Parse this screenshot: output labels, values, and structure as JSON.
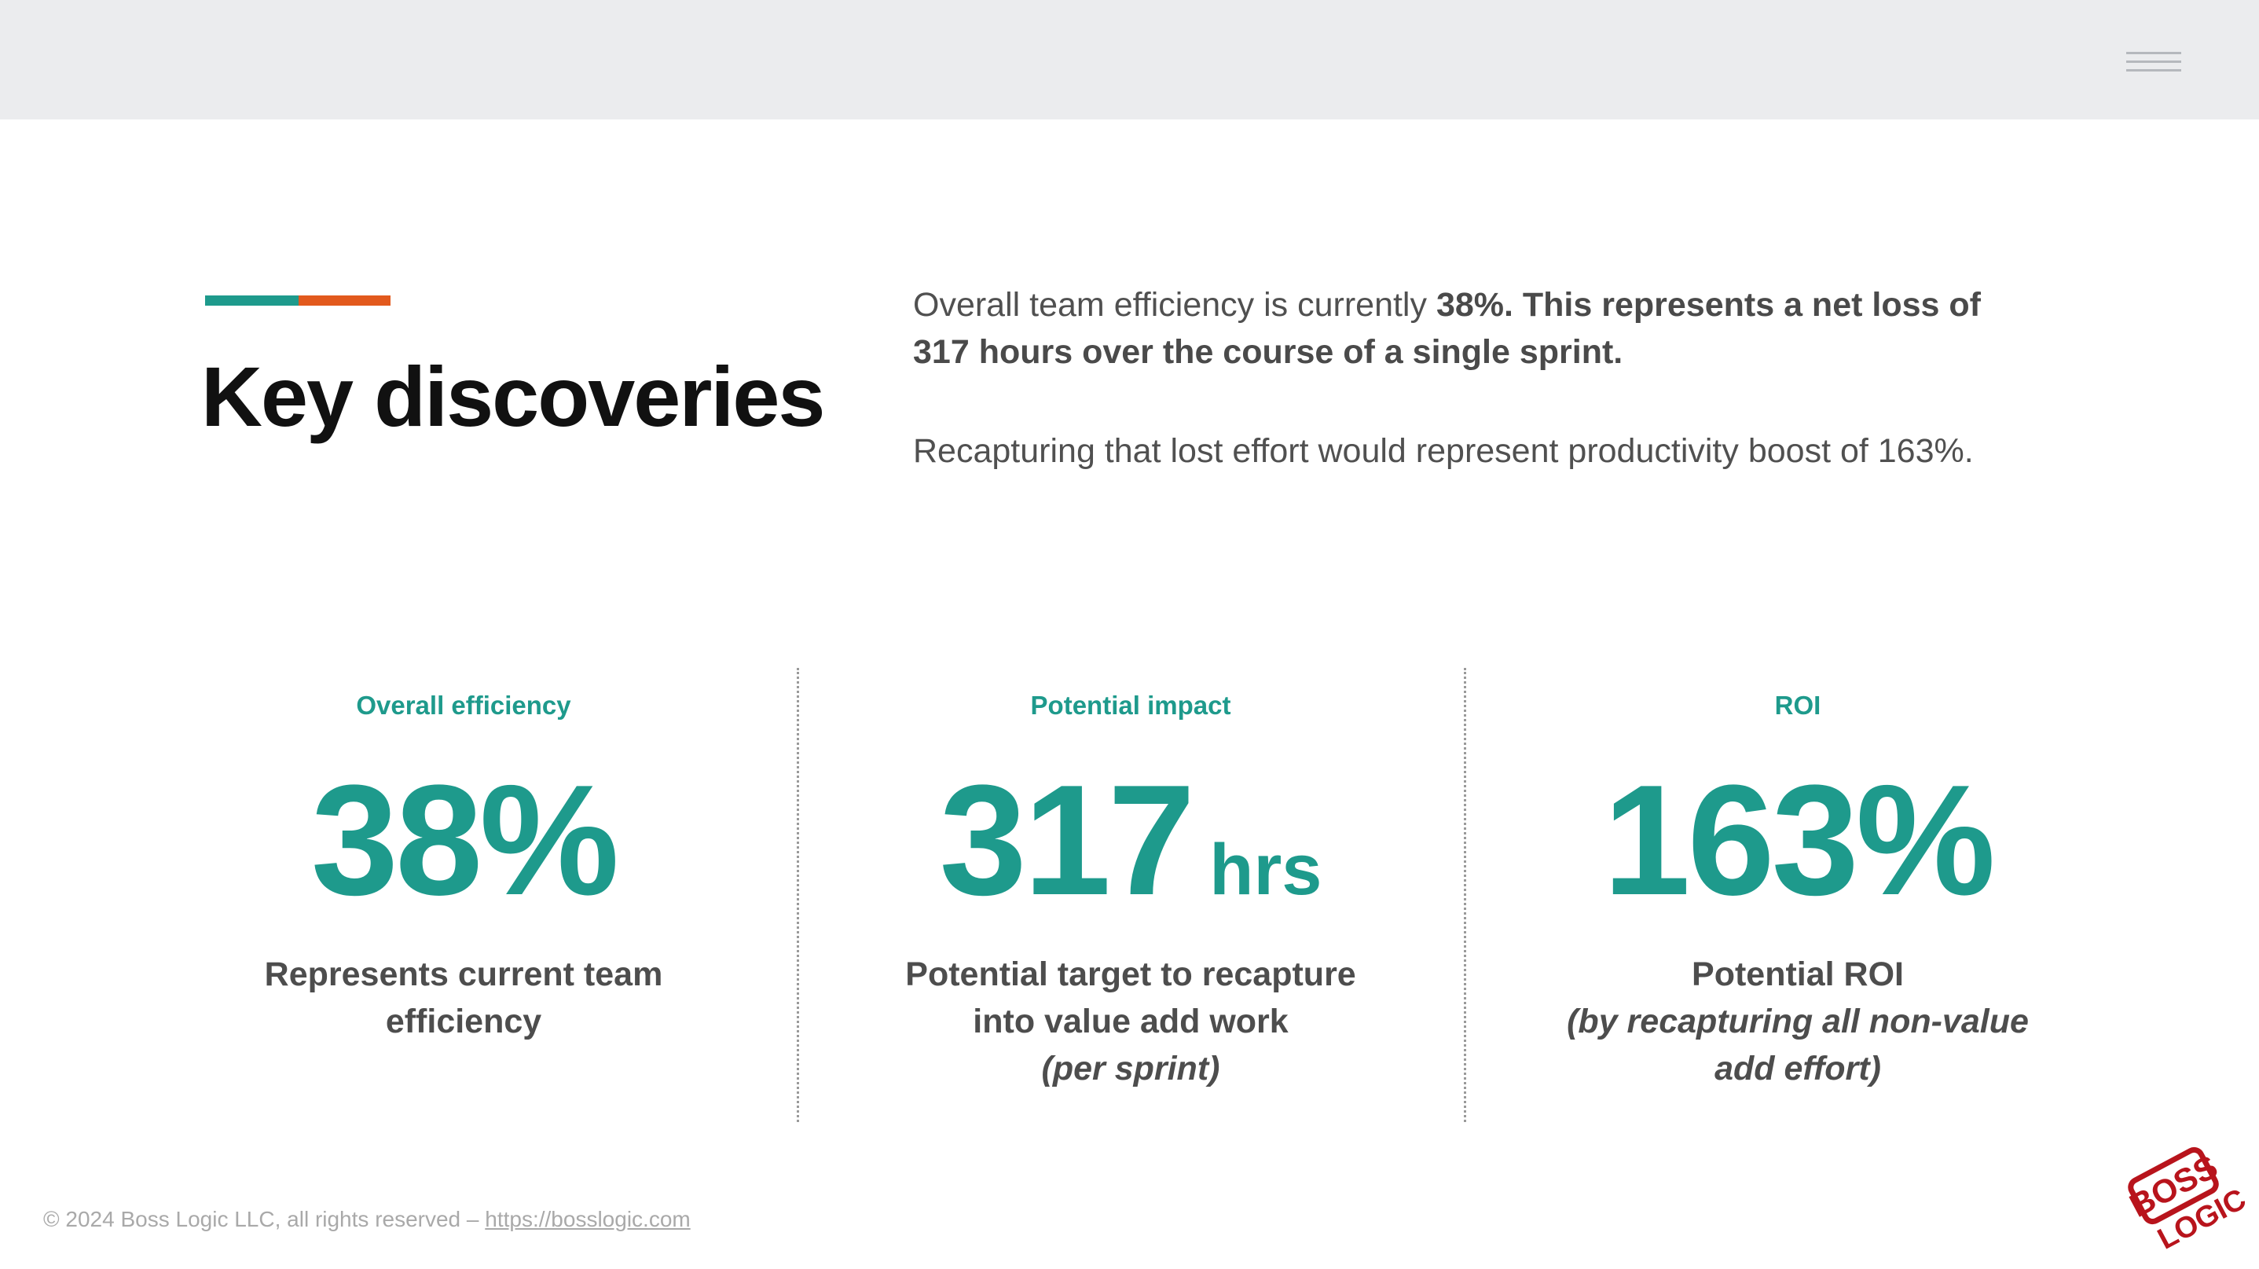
{
  "header": {
    "menu_icon": "hamburger-menu-icon"
  },
  "colors": {
    "accent_teal": "#1e9a8c",
    "accent_orange": "#e2591d",
    "topbar": "#ebecee"
  },
  "title": "Key discoveries",
  "intro": {
    "p1_normal": "Overall team efficiency is currently ",
    "p1_bold": "38%. This represents a net loss of 317 hours over the course of a single sprint.",
    "p2": "Recapturing that lost effort would represent productivity boost of 163%."
  },
  "stats": [
    {
      "label": "Overall efficiency",
      "value": "38%",
      "unit": "",
      "desc": "Represents current team efficiency",
      "note": ""
    },
    {
      "label": "Potential impact",
      "value": "317",
      "unit": "hrs",
      "desc": "Potential target to recapture into value add work",
      "note": "(per sprint)"
    },
    {
      "label": "ROI",
      "value": "163%",
      "unit": "",
      "desc": "Potential ROI",
      "note": "(by recapturing all non-value add effort)"
    }
  ],
  "footer": {
    "copyright": "© 2024 Boss Logic LLC, all rights reserved – ",
    "link": "https://bosslogic.com"
  },
  "logo": {
    "icon": "boss-logic-logo-icon",
    "line1": "BOSS",
    "line2": "LOGIC"
  }
}
